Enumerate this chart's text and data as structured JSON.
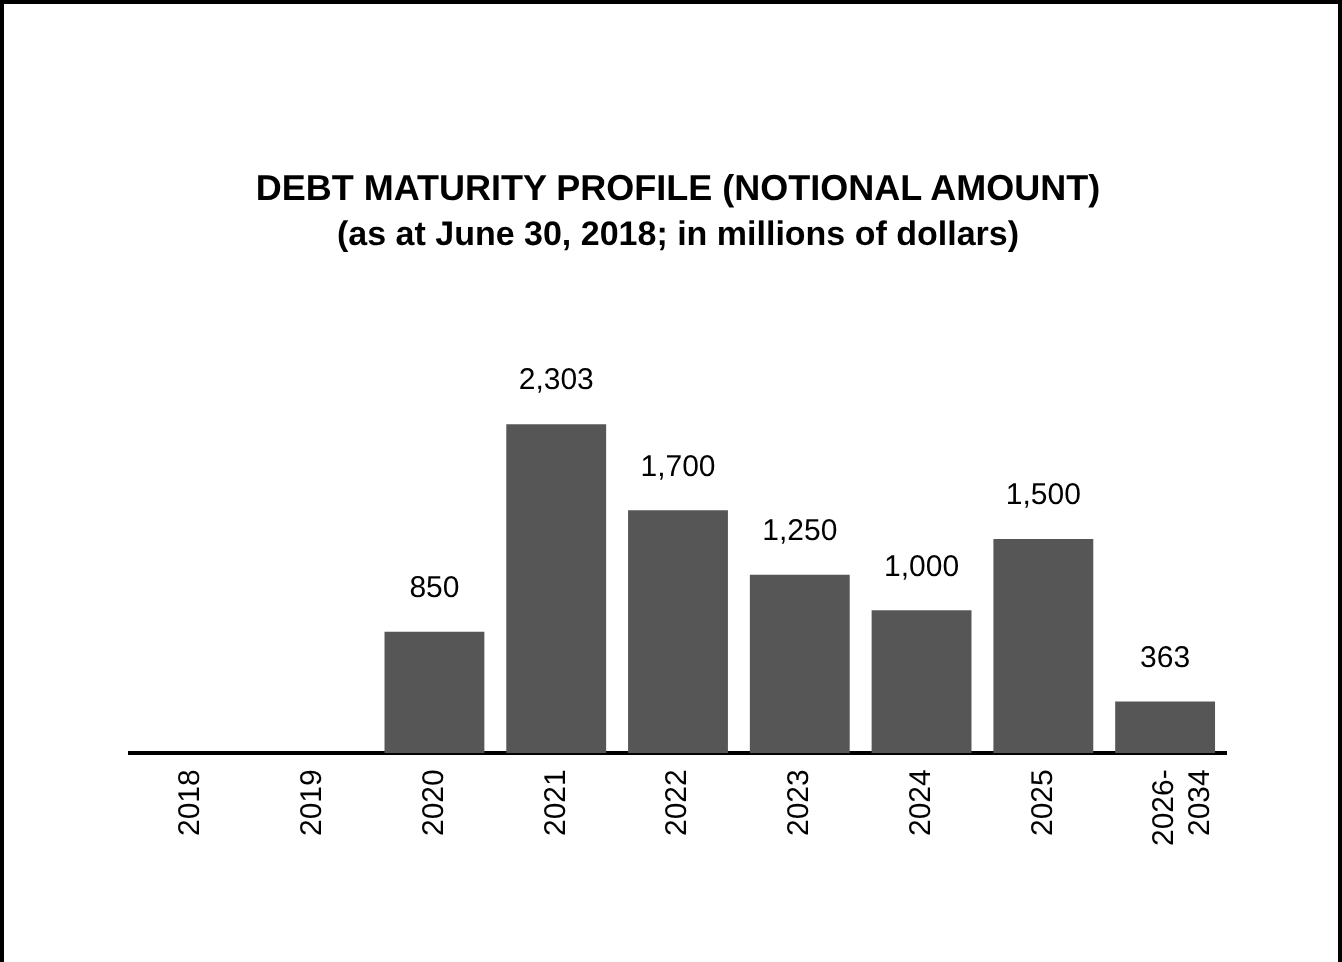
{
  "chart_data": {
    "type": "bar",
    "title": "DEBT MATURITY PROFILE (NOTIONAL AMOUNT)",
    "subtitle": "(as at June 30, 2018; in millions of dollars)",
    "categories": [
      "2018",
      "2019",
      "2020",
      "2021",
      "2022",
      "2023",
      "2024",
      "2025",
      "2026-2034"
    ],
    "values": [
      null,
      null,
      850,
      2303,
      1700,
      1250,
      1000,
      1500,
      363
    ],
    "value_labels": [
      null,
      null,
      "850",
      "2,303",
      "1,700",
      "1,250",
      "1,000",
      "1,500",
      "363"
    ],
    "color": "#565656",
    "grid": false,
    "legend": false
  }
}
